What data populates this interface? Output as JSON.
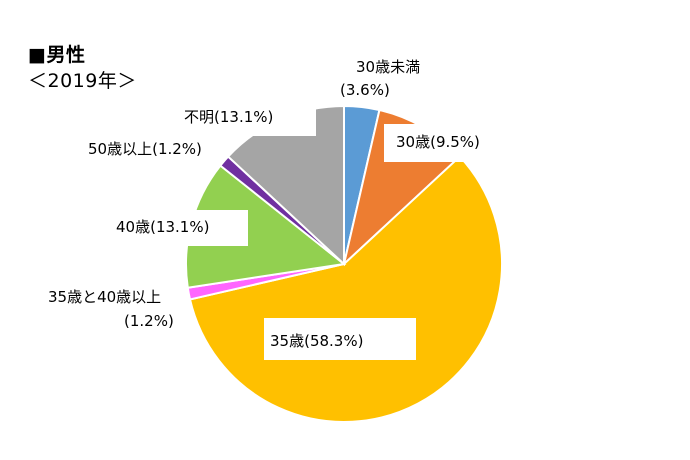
{
  "chart_data": {
    "type": "pie",
    "title": "■男性",
    "subtitle": "＜2019年＞",
    "slices": [
      {
        "label": "30歳未満",
        "pct": "(3.6%)",
        "value": 3.6,
        "color": "#5b9bd5"
      },
      {
        "label": "30歳",
        "pct": "(9.5%)",
        "value": 9.5,
        "color": "#ed7d31"
      },
      {
        "label": "35歳",
        "pct": "(58.3%)",
        "value": 58.3,
        "color": "#ffc000"
      },
      {
        "label": "35歳と40歳以上",
        "pct": "(1.2%)",
        "value": 1.2,
        "color": "#ff66ff"
      },
      {
        "label": "40歳",
        "pct": "(13.1%)",
        "value": 13.1,
        "color": "#92d050"
      },
      {
        "label": "50歳以上",
        "pct": "(1.2%)",
        "value": 1.2,
        "color": "#7030a0"
      },
      {
        "label": "不明",
        "pct": "(13.1%)",
        "value": 13.1,
        "color": "#a5a5a5"
      }
    ]
  }
}
